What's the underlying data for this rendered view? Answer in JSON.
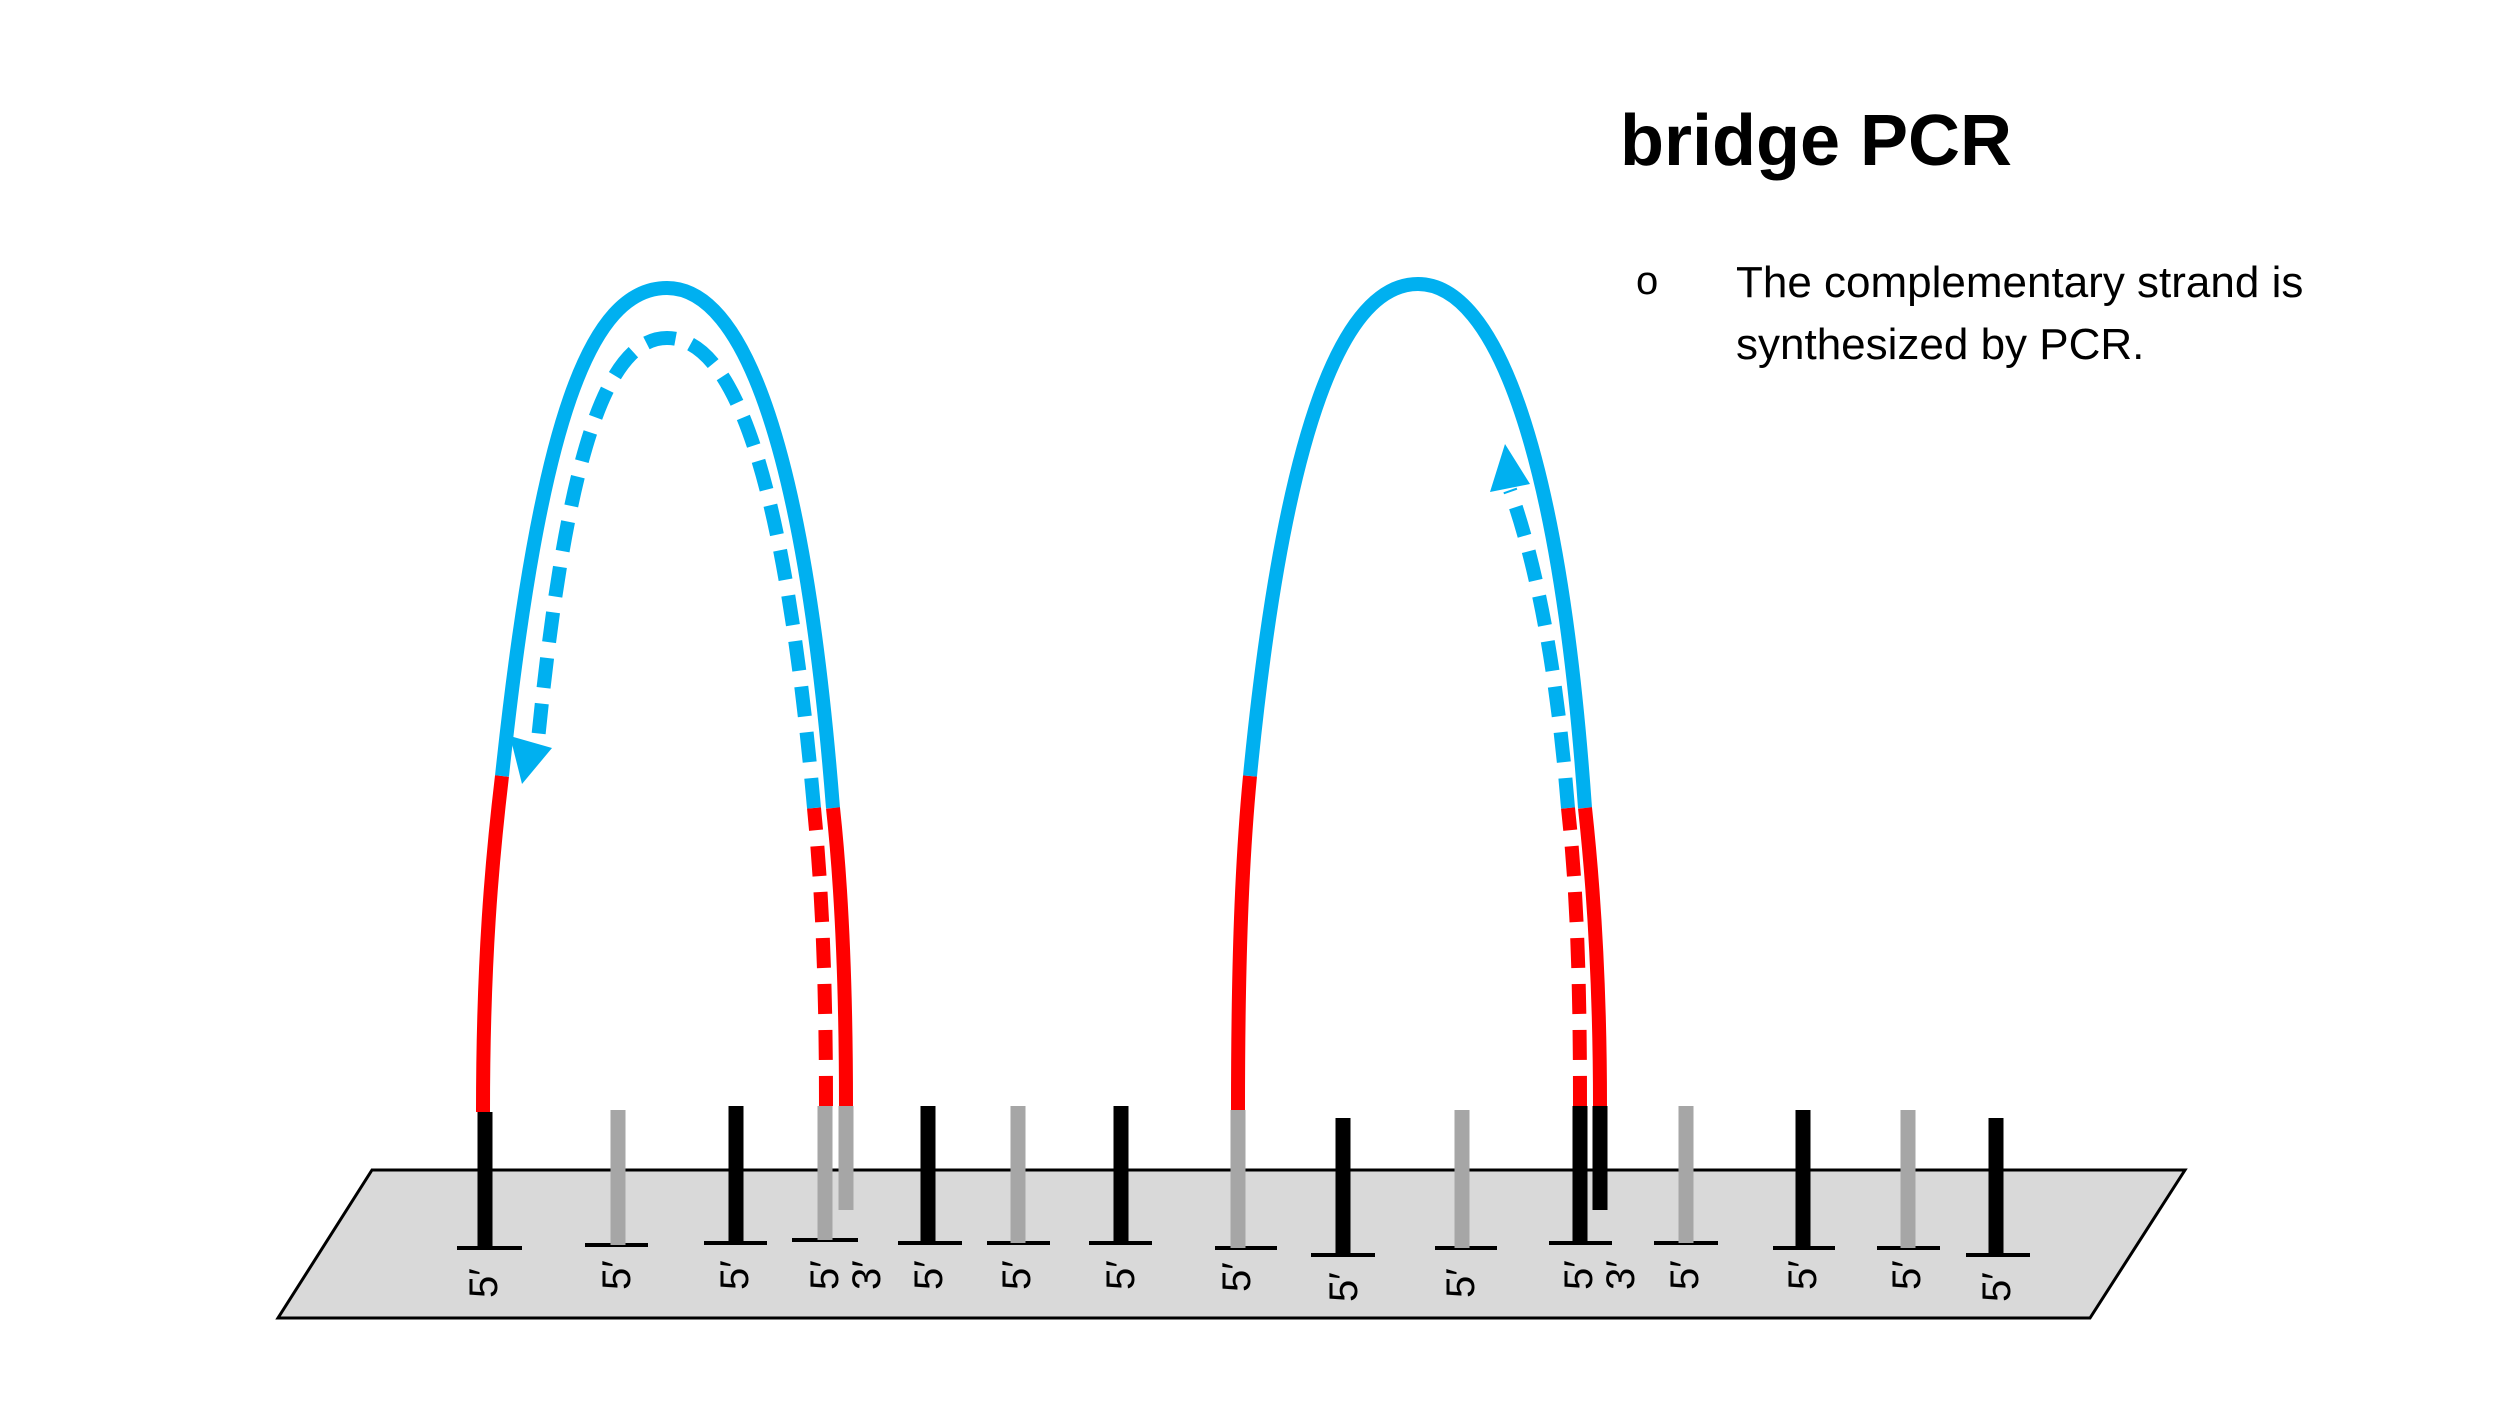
{
  "slide": {
    "title": "bridge PCR",
    "bullets": [
      {
        "marker": "o",
        "text": "The complementary strand is synthesized by PCR."
      }
    ]
  },
  "colors": {
    "background": "#ffffff",
    "slide_surface": "#d9d9d9",
    "primer_black": "#000000",
    "primer_gray": "#a6a6a6",
    "adapter_red": "#ff0000",
    "template_blue": "#00b0f0"
  },
  "labels": {
    "five_prime": "5′",
    "three_prime": "3′"
  }
}
